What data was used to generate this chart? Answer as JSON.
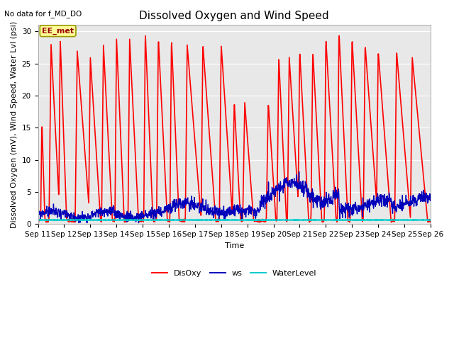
{
  "title": "Dissolved Oxygen and Wind Speed",
  "xlabel": "Time",
  "ylabel": "Dissolved Oxygen (mV), Wind Speed, Water Lvl (psi)",
  "top_left_text": "No data for f_MD_DO",
  "annotation_box": "EE_met",
  "ylim": [
    0,
    31
  ],
  "yticks": [
    0,
    5,
    10,
    15,
    20,
    25,
    30
  ],
  "xtick_labels": [
    "Sep 11",
    "Sep 12",
    "Sep 13",
    "Sep 14",
    "Sep 15",
    "Sep 16",
    "Sep 17",
    "Sep 18",
    "Sep 19",
    "Sep 20",
    "Sep 21",
    "Sep 22",
    "Sep 23",
    "Sep 24",
    "Sep 25",
    "Sep 26"
  ],
  "disoxy_color": "#FF0000",
  "ws_color": "#0000BB",
  "waterlevel_color": "#00CCCC",
  "background_color": "#E8E8E8",
  "fig_bg_color": "#FFFFFF",
  "title_fontsize": 11,
  "axis_label_fontsize": 8,
  "tick_fontsize": 7.5,
  "legend_fontsize": 8,
  "disoxy_linewidth": 1.2,
  "ws_linewidth": 1.0,
  "waterlevel_linewidth": 1.5,
  "waterlevel_value": 0.65,
  "grid_color": "#FFFFFF",
  "grid_linewidth": 0.8
}
